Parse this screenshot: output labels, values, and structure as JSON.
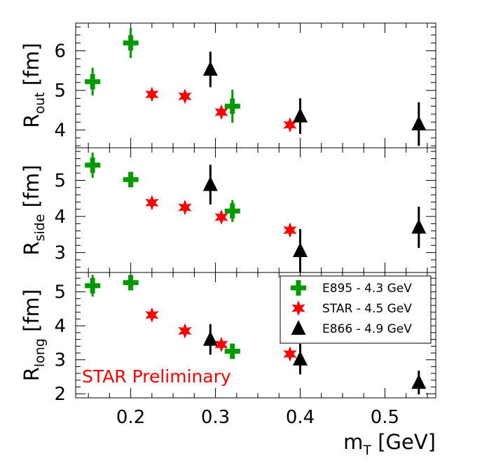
{
  "chart_data": {
    "type": "scatter",
    "x_label": {
      "main": "m",
      "sub": "T",
      "rest": " [GeV]"
    },
    "xlim": [
      0.135,
      0.56
    ],
    "x_ticks": [
      0.2,
      0.3,
      0.4,
      0.5
    ],
    "x_ticklabels": [
      "0.2",
      "0.3",
      "0.4",
      "0.5"
    ],
    "annotation": "STAR Preliminary",
    "annotation_color": "#ff0000",
    "legend_position": "top-right",
    "series": [
      {
        "name": "E895 - 4.3 GeV",
        "marker": "cross",
        "color": "#009900"
      },
      {
        "name": "STAR - 4.5 GeV",
        "marker": "star",
        "color": "#ff0000"
      },
      {
        "name": "E866 - 4.9 GeV",
        "marker": "triangle",
        "color": "#000000"
      }
    ],
    "panels": [
      {
        "id": "out",
        "ylabel": {
          "main": "R",
          "sub": "out",
          "rest": " [fm]"
        },
        "ylim": [
          3.55,
          6.7
        ],
        "y_ticks": [
          4,
          5,
          6
        ],
        "y_ticklabels": [
          "4",
          "5",
          "6"
        ],
        "points": {
          "E895 - 4.3 GeV": [
            [
              0.155,
              5.22,
              0.35
            ],
            [
              0.2,
              6.2,
              0.38
            ],
            [
              0.32,
              4.6,
              0.42
            ]
          ],
          "STAR - 4.5 GeV": [
            [
              0.225,
              4.9,
              0.1
            ],
            [
              0.264,
              4.85,
              0.1
            ],
            [
              0.307,
              4.45,
              0.1
            ],
            [
              0.388,
              4.13,
              0.1
            ]
          ],
          "E866 - 4.9 GeV": [
            [
              0.294,
              5.53,
              0.45
            ],
            [
              0.4,
              4.35,
              0.45
            ],
            [
              0.54,
              4.15,
              0.55
            ]
          ]
        }
      },
      {
        "id": "side",
        "ylabel": {
          "main": "R",
          "sub": "side",
          "rest": " [fm]"
        },
        "ylim": [
          2.45,
          5.9
        ],
        "y_ticks": [
          3,
          4,
          5
        ],
        "y_ticklabels": [
          "3",
          "4",
          "5"
        ],
        "points": {
          "E895 - 4.3 GeV": [
            [
              0.155,
              5.42,
              0.35
            ],
            [
              0.2,
              5.02,
              0.12
            ],
            [
              0.32,
              4.15,
              0.3
            ]
          ],
          "STAR - 4.5 GeV": [
            [
              0.225,
              4.38,
              0.1
            ],
            [
              0.264,
              4.25,
              0.1
            ],
            [
              0.307,
              3.98,
              0.1
            ],
            [
              0.388,
              3.62,
              0.1
            ]
          ],
          "E866 - 4.9 GeV": [
            [
              0.294,
              4.88,
              0.55
            ],
            [
              0.4,
              3.05,
              0.6
            ],
            [
              0.54,
              3.7,
              0.57
            ]
          ]
        }
      },
      {
        "id": "long",
        "ylabel": {
          "main": "R",
          "sub": "long",
          "rest": " [fm]"
        },
        "ylim": [
          1.88,
          5.57
        ],
        "y_ticks": [
          2,
          3,
          4,
          5
        ],
        "y_ticklabels": [
          "2",
          "3",
          "4",
          "5"
        ],
        "points": {
          "E895 - 4.3 GeV": [
            [
              0.155,
              5.18,
              0.32
            ],
            [
              0.2,
              5.27,
              0.08
            ],
            [
              0.32,
              3.25,
              0.2
            ]
          ],
          "STAR - 4.5 GeV": [
            [
              0.225,
              4.32,
              0.1
            ],
            [
              0.264,
              3.85,
              0.1
            ],
            [
              0.307,
              3.45,
              0.1
            ],
            [
              0.388,
              3.17,
              0.1
            ]
          ],
          "E866 - 4.9 GeV": [
            [
              0.294,
              3.6,
              0.45
            ],
            [
              0.4,
              3.02,
              0.45
            ],
            [
              0.54,
              2.33,
              0.35
            ]
          ]
        }
      }
    ]
  }
}
